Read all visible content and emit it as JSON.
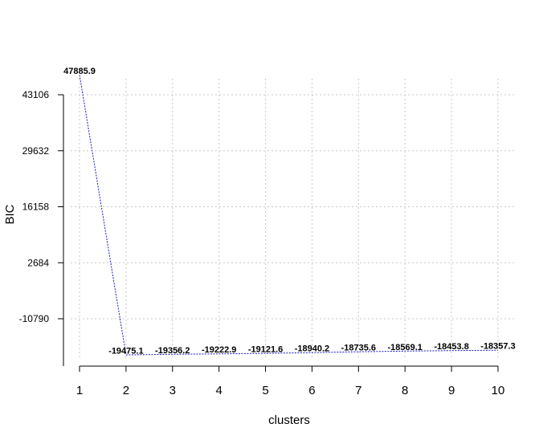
{
  "chart_data": {
    "type": "line",
    "title": "",
    "xlabel": "clusters",
    "ylabel": "BIC",
    "x": [
      1,
      2,
      3,
      4,
      5,
      6,
      7,
      8,
      9,
      10
    ],
    "xticks": [
      "1",
      "2",
      "3",
      "4",
      "5",
      "6",
      "7",
      "8",
      "9",
      "10"
    ],
    "yticks": [
      -10790,
      2684,
      16158,
      29632,
      43106
    ],
    "ytick_labels": [
      "-10790",
      "2684",
      "16158",
      "29632",
      "43106"
    ],
    "xlim": [
      1,
      10
    ],
    "ylim": [
      -22000,
      48500
    ],
    "grid": true,
    "series": [
      {
        "values": [
          47885.9,
          -19475.1,
          -19356.2,
          -19222.9,
          -19121.6,
          -18940.2,
          -18735.6,
          -18569.1,
          -18453.8,
          -18357.3
        ],
        "labels": [
          "47885.9",
          "-19475.1",
          "-19356.2",
          "-19222.9",
          "-19121.6",
          "-18940.2",
          "-18735.6",
          "-18569.1",
          "-18453.8",
          "-18357.3"
        ],
        "color": "#1a1acc"
      }
    ]
  }
}
